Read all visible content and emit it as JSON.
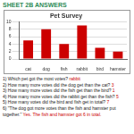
{
  "header": {
    "title": "SHEET 2B ANSWERS"
  },
  "chart_data": {
    "type": "bar",
    "title": "Pet Survey",
    "categories": [
      "cat",
      "dog",
      "fish",
      "rabbit",
      "bird",
      "hamster"
    ],
    "values": [
      5,
      8,
      4,
      9,
      3,
      2
    ],
    "color": "#cc0000",
    "ylim": [
      0,
      10
    ],
    "yticks": [
      0,
      2,
      4,
      6,
      8,
      10
    ],
    "grid": true
  },
  "questions": [
    {
      "text": "1) Which pet got the most votes?",
      "answer": "rabbit"
    },
    {
      "text": "2) How many more votes did the dog get than the cat?",
      "answer": "3"
    },
    {
      "text": "3) How many more votes did the fish get than the bird?",
      "answer": "1"
    },
    {
      "text": "4) How many more votes did the rabbit get than the fish?",
      "answer": "5"
    },
    {
      "text": "5) How many votes did the bird and fish get in total?",
      "answer": "7"
    },
    {
      "text": "6) \"The dog got more votes than the fish and hamster put together.\"",
      "answer": "Yes. The fish and hamster got 6 in total."
    }
  ]
}
